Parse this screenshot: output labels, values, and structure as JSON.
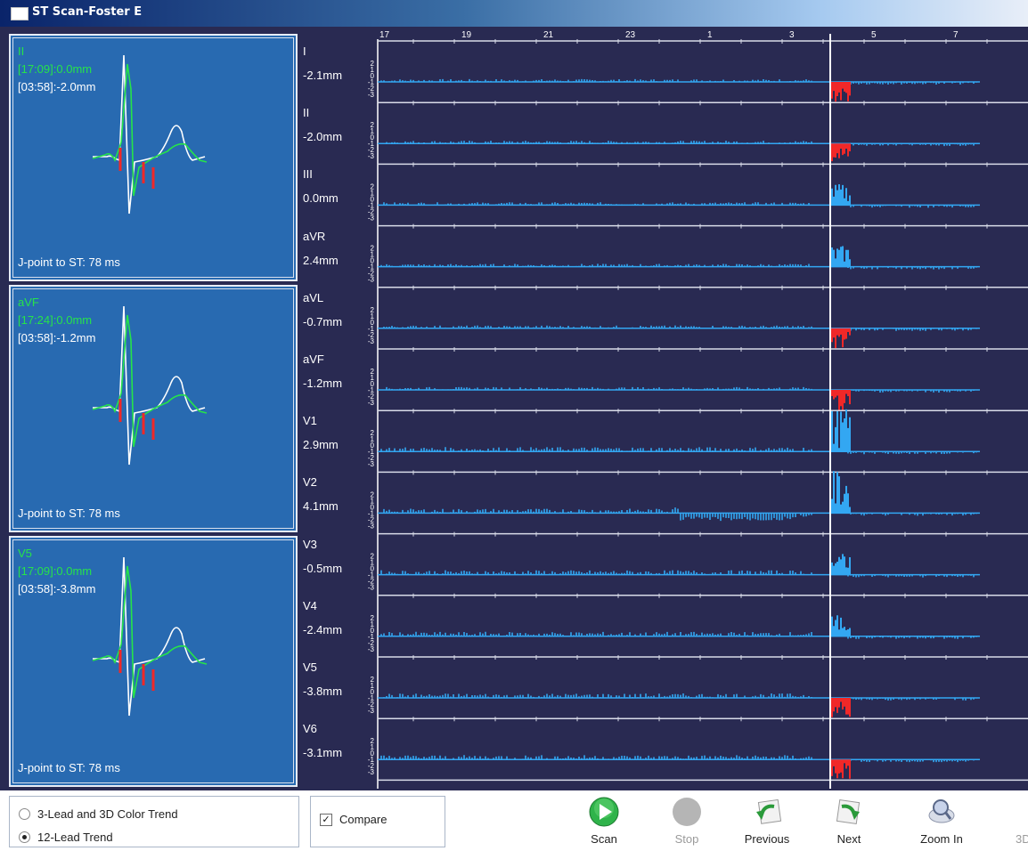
{
  "window": {
    "title": "ST Scan-Foster E"
  },
  "colors": {
    "background": "#292a52",
    "panel": "#286ab1",
    "trend": "#33a7f2",
    "alert": "#f02828",
    "green": "#26e34a"
  },
  "lead_panels": [
    {
      "lead": "II",
      "current": "[17:09]:0.0mm",
      "reference": "[03:58]:-2.0mm",
      "jpoint": "J-point to ST: 78 ms"
    },
    {
      "lead": "aVF",
      "current": "[17:24]:0.0mm",
      "reference": "[03:58]:-1.2mm",
      "jpoint": "J-point to ST: 78 ms"
    },
    {
      "lead": "V5",
      "current": "[17:09]:0.0mm",
      "reference": "[03:58]:-3.8mm",
      "jpoint": "J-point to ST: 78 ms"
    }
  ],
  "chart_data": {
    "type": "area",
    "x_tick_labels": [
      "17",
      "19",
      "21",
      "23",
      "1",
      "3",
      "5",
      "7"
    ],
    "y_tick_labels": [
      "2",
      "1",
      "0",
      "-1",
      "-2",
      "-3"
    ],
    "ylim": [
      -3,
      3
    ],
    "cursor_hour": "4",
    "leads": [
      {
        "name": "I",
        "value": "-2.1mm"
      },
      {
        "name": "II",
        "value": "-2.0mm"
      },
      {
        "name": "III",
        "value": "0.0mm"
      },
      {
        "name": "aVR",
        "value": "2.4mm"
      },
      {
        "name": "aVL",
        "value": "-0.7mm"
      },
      {
        "name": "aVF",
        "value": "-1.2mm"
      },
      {
        "name": "V1",
        "value": "2.9mm"
      },
      {
        "name": "V2",
        "value": "4.1mm"
      },
      {
        "name": "V3",
        "value": "-0.5mm"
      },
      {
        "name": "V4",
        "value": "-2.4mm"
      },
      {
        "name": "V5",
        "value": "-3.8mm"
      },
      {
        "name": "V6",
        "value": "-3.1mm"
      }
    ]
  },
  "mode": {
    "options": [
      "3-Lead and 3D Color Trend",
      "12-Lead Trend"
    ],
    "selected": "12-Lead Trend"
  },
  "compare": {
    "label": "Compare",
    "checked": true
  },
  "toolbar": {
    "scan": "Scan",
    "stop": "Stop",
    "previous": "Previous",
    "next": "Next",
    "zoom_in": "Zoom In",
    "three_d": "3D"
  }
}
